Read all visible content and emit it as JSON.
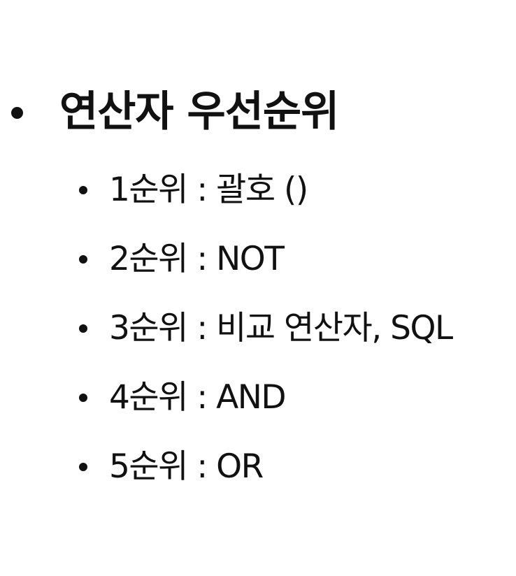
{
  "heading": {
    "text": "연산자 우선순위"
  },
  "items": [
    {
      "text": "1순위 : 괄호 ()"
    },
    {
      "text": "2순위 : NOT"
    },
    {
      "text": "3순위 : 비교 연산자, SQL"
    },
    {
      "text": "4순위 : AND"
    },
    {
      "text": "5순위 : OR"
    }
  ]
}
